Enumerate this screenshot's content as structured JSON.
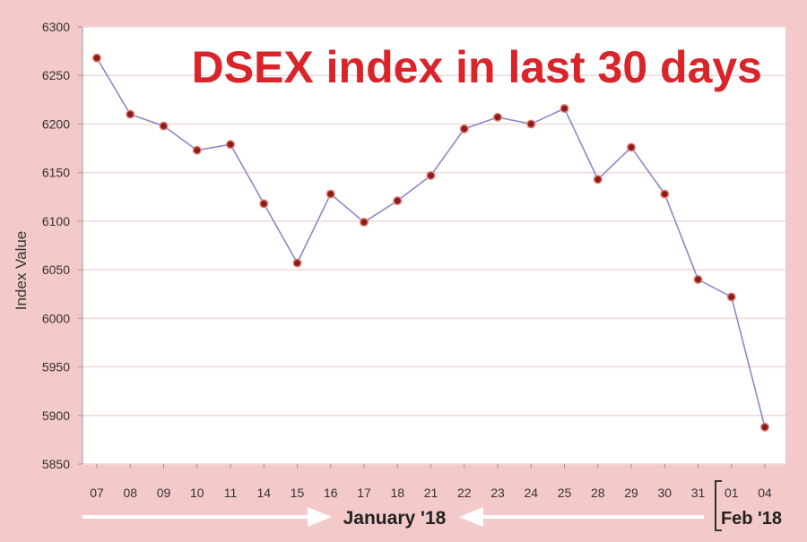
{
  "colors": {
    "background": "#f4c9c9",
    "plot_background": "#ffffff",
    "grid": "#f1d8d8",
    "line": "#8a88cc",
    "marker_fill": "#8c1c1c",
    "marker_stroke": "#e27a6e",
    "title": "#d9242a",
    "text": "#333333",
    "arrow": "#ffffff"
  },
  "chart_data": {
    "type": "line",
    "title": "DSEX index in last 30 days",
    "ylabel": "Index Value",
    "xlabel": "",
    "ylim": [
      5850,
      6300
    ],
    "yticks": [
      5850,
      5900,
      5950,
      6000,
      6050,
      6100,
      6150,
      6200,
      6250,
      6300
    ],
    "grid": true,
    "categories": [
      "07",
      "08",
      "09",
      "10",
      "11",
      "14",
      "15",
      "16",
      "17",
      "18",
      "21",
      "22",
      "23",
      "24",
      "25",
      "28",
      "29",
      "30",
      "31",
      "01",
      "04"
    ],
    "series": [
      {
        "values": [
          6268,
          6210,
          6198,
          6173,
          6179,
          6118,
          6057,
          6128,
          6099,
          6121,
          6147,
          6195,
          6207,
          6200,
          6216,
          6143,
          6176,
          6128,
          6040,
          6022,
          5888
        ]
      }
    ],
    "month_labels": [
      "January '18",
      "Feb '18"
    ]
  }
}
